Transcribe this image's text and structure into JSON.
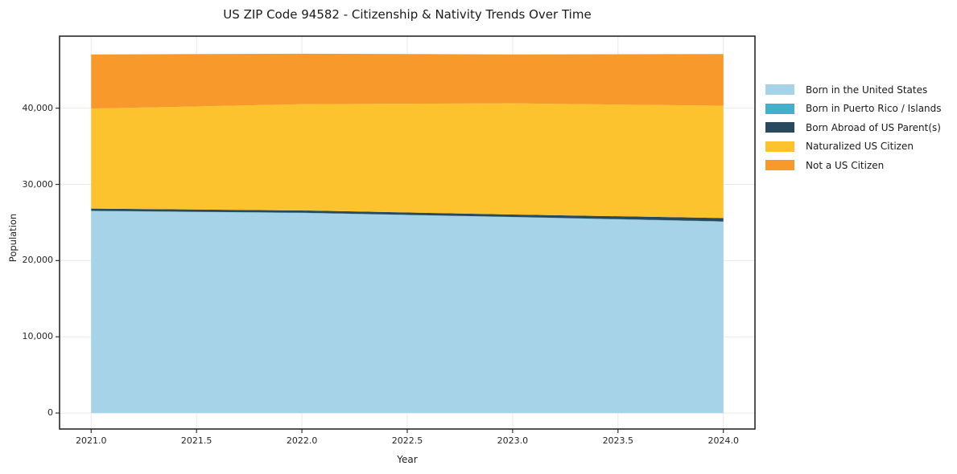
{
  "figure": {
    "background": "#ffffff"
  },
  "chart_data": {
    "type": "area",
    "stacked": true,
    "title": "US ZIP Code 94582 - Citizenship & Nativity Trends Over Time",
    "xlabel": "Year",
    "ylabel": "Population",
    "x": [
      2021,
      2022,
      2023,
      2024
    ],
    "series": [
      {
        "name": "Born in the United States",
        "color": "#a6d3e8",
        "values": [
          26500,
          26250,
          25700,
          25100
        ]
      },
      {
        "name": "Born in Puerto Rico / Islands",
        "color": "#45aec9",
        "values": [
          30,
          30,
          30,
          40
        ]
      },
      {
        "name": "Born Abroad of US Parent(s)",
        "color": "#294a5e",
        "values": [
          300,
          300,
          320,
          450
        ]
      },
      {
        "name": "Naturalized US Citizen",
        "color": "#fdc32e",
        "values": [
          13120,
          13940,
          14580,
          14730
        ]
      },
      {
        "name": "Not a US Citizen",
        "color": "#f8992b",
        "values": [
          7100,
          6630,
          6420,
          6780
        ]
      }
    ],
    "totals": [
      47050,
      47150,
      47050,
      47100
    ],
    "x_ticks": [
      {
        "value": 2021.0,
        "label": "2021.0"
      },
      {
        "value": 2021.5,
        "label": "2021.5"
      },
      {
        "value": 2022.0,
        "label": "2022.0"
      },
      {
        "value": 2022.5,
        "label": "2022.5"
      },
      {
        "value": 2023.0,
        "label": "2023.0"
      },
      {
        "value": 2023.5,
        "label": "2023.5"
      },
      {
        "value": 2024.0,
        "label": "2024.0"
      }
    ],
    "y_ticks": [
      {
        "value": 0,
        "label": "0"
      },
      {
        "value": 10000,
        "label": "10,000"
      },
      {
        "value": 20000,
        "label": "20,000"
      },
      {
        "value": 30000,
        "label": "30,000"
      },
      {
        "value": 40000,
        "label": "40,000"
      }
    ],
    "xlim": [
      2020.85,
      2024.15
    ],
    "ylim": [
      -2100,
      49450
    ],
    "grid": true,
    "legend_position": "right-outside",
    "legend_frame": false,
    "style_colors": {
      "grid": "#eaeaea",
      "spine": "#1a1a1a",
      "tick": "#333333",
      "text": "#1f1f1f"
    }
  }
}
